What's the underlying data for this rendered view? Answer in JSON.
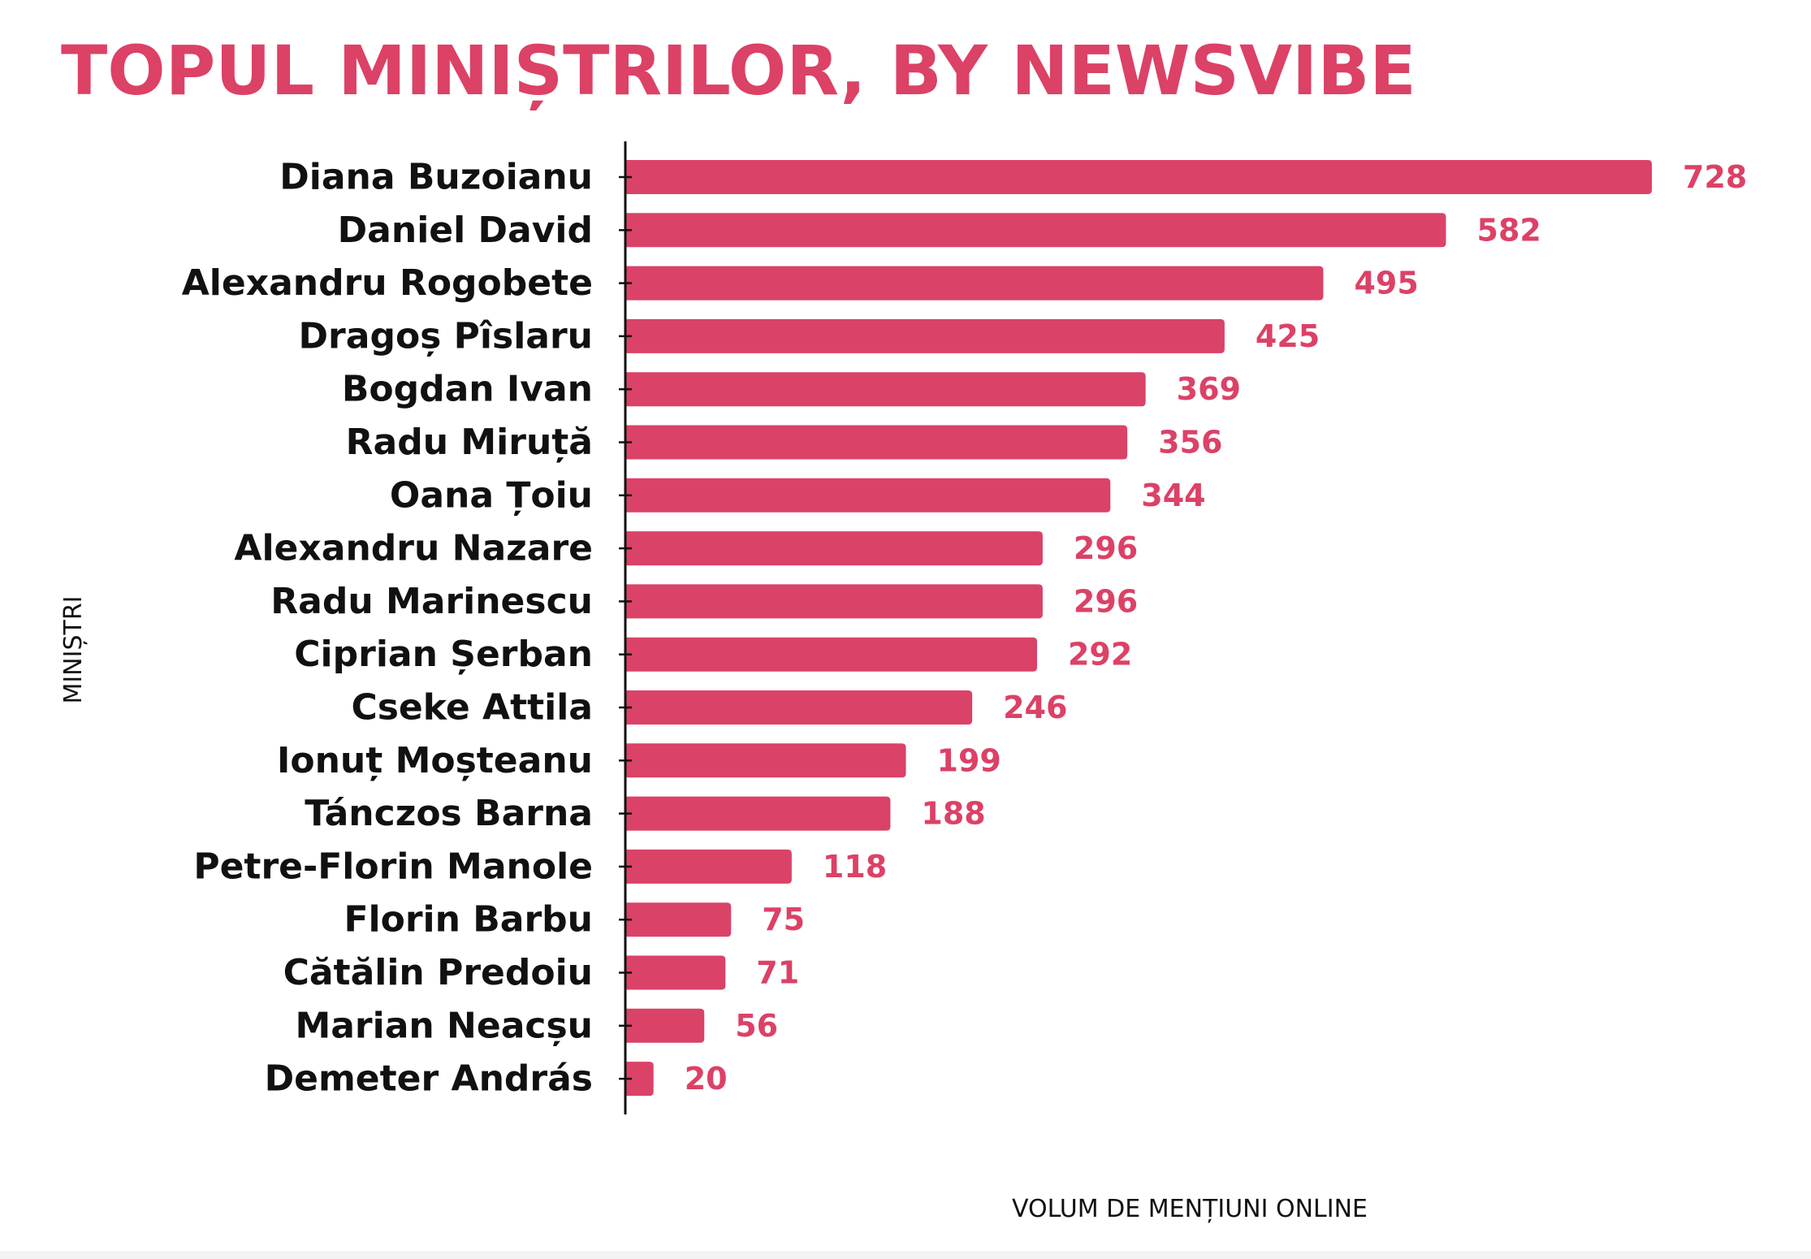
{
  "chart_data": {
    "type": "bar",
    "orientation": "horizontal",
    "title": "TOPUL MINIȘTRILOR, BY NEWSVIBE",
    "xlabel": "VOLUM DE MENȚIUNI ONLINE",
    "ylabel": "MINIȘTRI",
    "categories": [
      "Diana Buzoianu",
      "Daniel David",
      "Alexandru Rogobete",
      "Dragoș Pîslaru",
      "Bogdan Ivan",
      "Radu Miruță",
      "Oana Țoiu",
      "Alexandru Nazare",
      "Radu Marinescu",
      "Ciprian Șerban",
      "Cseke Attila",
      "Ionuț Moșteanu",
      "Tánczos Barna",
      "Petre-Florin Manole",
      "Florin Barbu",
      "Cătălin Predoiu",
      "Marian Neacșu",
      "Demeter András"
    ],
    "values": [
      728,
      582,
      495,
      425,
      369,
      356,
      344,
      296,
      296,
      292,
      246,
      199,
      188,
      118,
      75,
      71,
      56,
      20
    ],
    "data_labels": [
      "728",
      "582",
      "495",
      "425",
      "369",
      "356",
      "344",
      "296",
      "296",
      "292",
      "246",
      "199",
      "188",
      "118",
      "75",
      "71",
      "56",
      "20"
    ],
    "xlim": [
      0,
      750
    ],
    "grid": false,
    "legend": "none",
    "colors": {
      "bar": "#db4268",
      "title": "#dc4166",
      "value_label": "#dc4166",
      "text": "#111111",
      "axis": "#111111"
    }
  }
}
